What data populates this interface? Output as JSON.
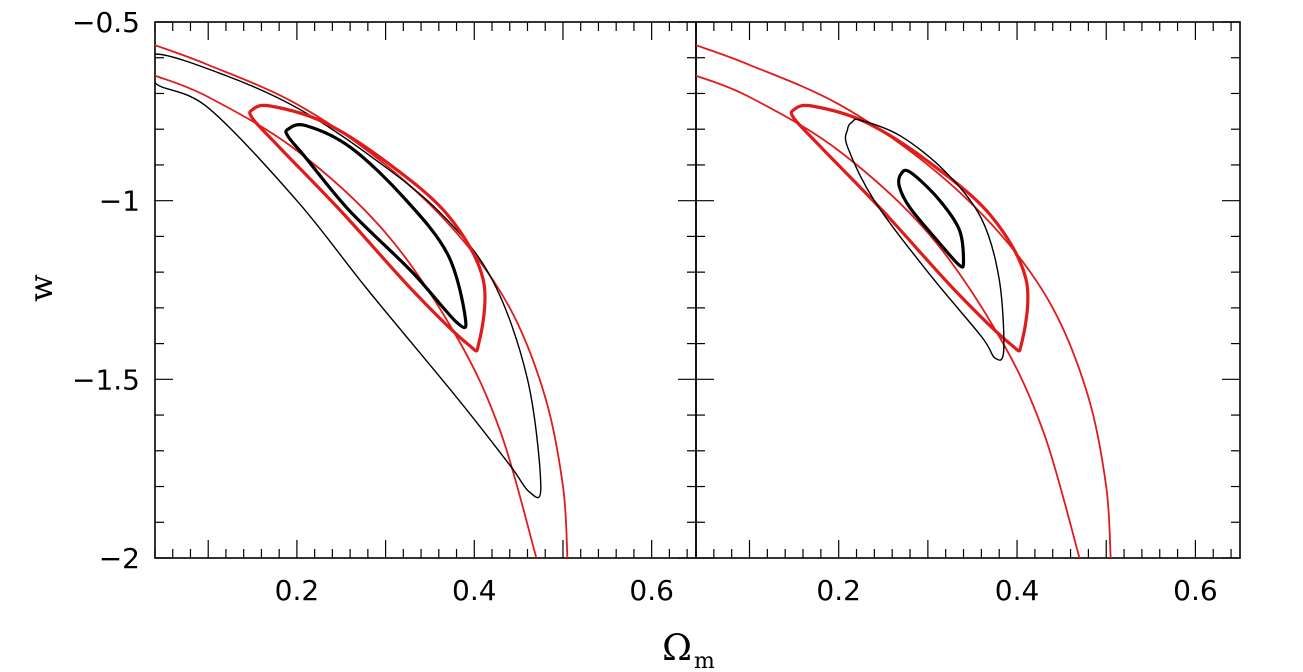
{
  "chart_data": [
    {
      "type": "line",
      "panel": "left",
      "xlabel": "",
      "ylabel": "w",
      "xlim": [
        0.04,
        0.65
      ],
      "ylim": [
        -2,
        -0.5
      ],
      "x_ticks": [
        0.2,
        0.4,
        0.6
      ],
      "x_tick_labels": [
        "0.2",
        "0.4",
        "0.6"
      ],
      "y_ticks": [
        -0.5,
        -1,
        -1.5,
        -2
      ],
      "y_tick_labels": [
        "−0.5",
        "−1",
        "−1.5",
        "−2"
      ],
      "grid": false,
      "series": [
        {
          "color": "#e01b1b",
          "width": 1.8,
          "closed": false,
          "points": [
            [
              0.04,
              -0.565
            ],
            [
              0.1,
              -0.62
            ],
            [
              0.2,
              -0.73
            ],
            [
              0.3,
              -0.9
            ],
            [
              0.38,
              -1.09
            ],
            [
              0.44,
              -1.3
            ],
            [
              0.48,
              -1.55
            ],
            [
              0.5,
              -1.8
            ],
            [
              0.505,
              -2.0
            ]
          ]
        },
        {
          "color": "#e01b1b",
          "width": 1.8,
          "closed": false,
          "points": [
            [
              0.04,
              -0.65
            ],
            [
              0.1,
              -0.71
            ],
            [
              0.2,
              -0.86
            ],
            [
              0.3,
              -1.09
            ],
            [
              0.38,
              -1.38
            ],
            [
              0.43,
              -1.65
            ],
            [
              0.47,
              -2.0
            ]
          ]
        },
        {
          "color": "#000000",
          "width": 1.4,
          "closed": true,
          "points": [
            [
              0.04,
              -0.59
            ],
            [
              0.12,
              -0.65
            ],
            [
              0.2,
              -0.74
            ],
            [
              0.28,
              -0.87
            ],
            [
              0.36,
              -1.03
            ],
            [
              0.42,
              -1.22
            ],
            [
              0.46,
              -1.5
            ],
            [
              0.475,
              -1.8
            ],
            [
              0.462,
              -1.815
            ],
            [
              0.44,
              -1.74
            ],
            [
              0.38,
              -1.55
            ],
            [
              0.28,
              -1.25
            ],
            [
              0.2,
              -1.0
            ],
            [
              0.1,
              -0.74
            ],
            [
              0.04,
              -0.67
            ]
          ]
        },
        {
          "color": "#e01b1b",
          "width": 3.2,
          "closed": true,
          "points": [
            [
              0.15,
              -0.745
            ],
            [
              0.17,
              -0.735
            ],
            [
              0.23,
              -0.78
            ],
            [
              0.3,
              -0.89
            ],
            [
              0.37,
              -1.04
            ],
            [
              0.41,
              -1.22
            ],
            [
              0.405,
              -1.4
            ],
            [
              0.392,
              -1.4
            ],
            [
              0.33,
              -1.25
            ],
            [
              0.25,
              -1.03
            ],
            [
              0.18,
              -0.85
            ],
            [
              0.15,
              -0.77
            ]
          ]
        },
        {
          "color": "#000000",
          "width": 3.2,
          "closed": true,
          "points": [
            [
              0.19,
              -0.8
            ],
            [
              0.21,
              -0.79
            ],
            [
              0.26,
              -0.85
            ],
            [
              0.32,
              -0.99
            ],
            [
              0.37,
              -1.15
            ],
            [
              0.39,
              -1.33
            ],
            [
              0.38,
              -1.34
            ],
            [
              0.33,
              -1.2
            ],
            [
              0.26,
              -1.03
            ],
            [
              0.21,
              -0.88
            ],
            [
              0.19,
              -0.82
            ]
          ]
        }
      ]
    },
    {
      "type": "line",
      "panel": "right",
      "xlabel": "Ω",
      "xlabel_sub": "m",
      "ylabel": "",
      "xlim": [
        0.04,
        0.65
      ],
      "ylim": [
        -2,
        -0.5
      ],
      "x_ticks": [
        0.2,
        0.4,
        0.6
      ],
      "x_tick_labels": [
        "0.2",
        "0.4",
        "0.6"
      ],
      "grid": false,
      "series": [
        {
          "color": "#e01b1b",
          "width": 1.8,
          "closed": false,
          "points": [
            [
              0.04,
              -0.565
            ],
            [
              0.1,
              -0.62
            ],
            [
              0.2,
              -0.73
            ],
            [
              0.3,
              -0.9
            ],
            [
              0.38,
              -1.09
            ],
            [
              0.44,
              -1.3
            ],
            [
              0.48,
              -1.55
            ],
            [
              0.5,
              -1.8
            ],
            [
              0.505,
              -2.0
            ]
          ]
        },
        {
          "color": "#e01b1b",
          "width": 1.8,
          "closed": false,
          "points": [
            [
              0.04,
              -0.65
            ],
            [
              0.1,
              -0.71
            ],
            [
              0.2,
              -0.86
            ],
            [
              0.3,
              -1.09
            ],
            [
              0.38,
              -1.38
            ],
            [
              0.43,
              -1.65
            ],
            [
              0.47,
              -2.0
            ]
          ]
        },
        {
          "color": "#e01b1b",
          "width": 3.2,
          "closed": true,
          "points": [
            [
              0.15,
              -0.745
            ],
            [
              0.17,
              -0.735
            ],
            [
              0.23,
              -0.78
            ],
            [
              0.3,
              -0.89
            ],
            [
              0.37,
              -1.04
            ],
            [
              0.41,
              -1.22
            ],
            [
              0.405,
              -1.4
            ],
            [
              0.392,
              -1.4
            ],
            [
              0.33,
              -1.25
            ],
            [
              0.25,
              -1.03
            ],
            [
              0.18,
              -0.85
            ],
            [
              0.15,
              -0.77
            ]
          ]
        },
        {
          "color": "#000000",
          "width": 1.4,
          "closed": true,
          "points": [
            [
              0.215,
              -0.78
            ],
            [
              0.225,
              -0.775
            ],
            [
              0.27,
              -0.82
            ],
            [
              0.32,
              -0.92
            ],
            [
              0.36,
              -1.05
            ],
            [
              0.38,
              -1.22
            ],
            [
              0.385,
              -1.42
            ],
            [
              0.375,
              -1.44
            ],
            [
              0.36,
              -1.38
            ],
            [
              0.3,
              -1.2
            ],
            [
              0.24,
              -1.0
            ],
            [
              0.21,
              -0.85
            ],
            [
              0.21,
              -0.8
            ]
          ]
        },
        {
          "color": "#000000",
          "width": 3.2,
          "closed": true,
          "points": [
            [
              0.27,
              -0.925
            ],
            [
              0.28,
              -0.92
            ],
            [
              0.31,
              -0.99
            ],
            [
              0.335,
              -1.08
            ],
            [
              0.34,
              -1.17
            ],
            [
              0.335,
              -1.18
            ],
            [
              0.31,
              -1.11
            ],
            [
              0.28,
              -1.02
            ],
            [
              0.268,
              -0.96
            ]
          ]
        }
      ]
    }
  ]
}
